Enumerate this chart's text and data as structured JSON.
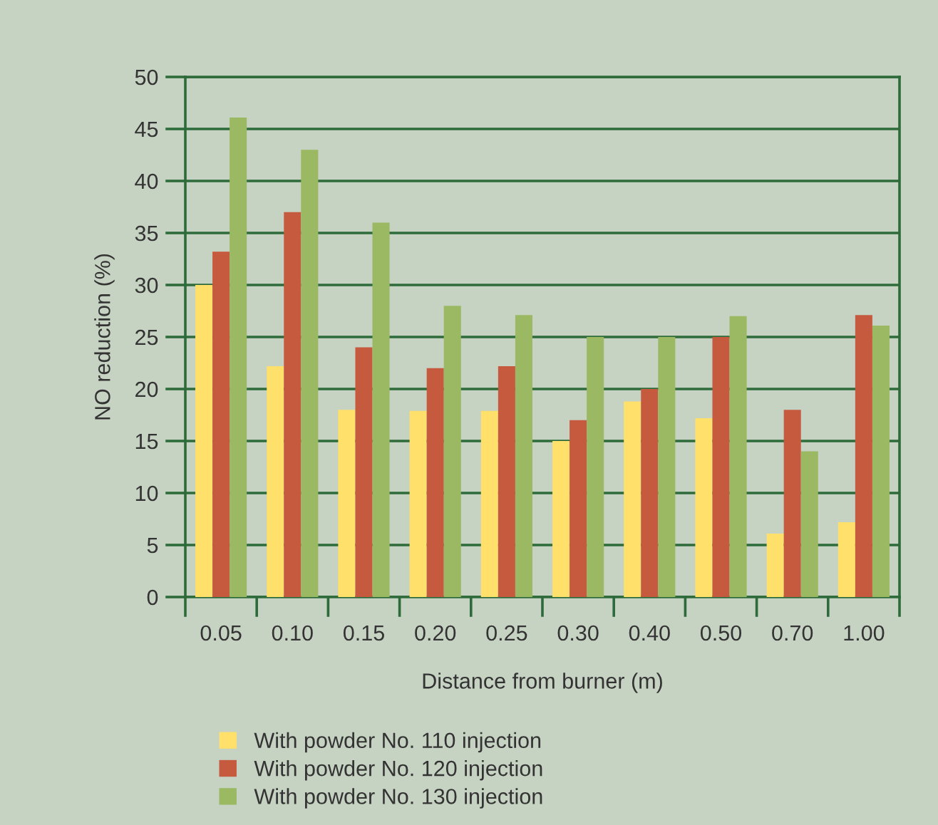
{
  "chart_data": {
    "type": "bar",
    "xlabel": "Distance from burner (m)",
    "ylabel": "NO reduction (%)",
    "categories": [
      "0.05",
      "0.10",
      "0.15",
      "0.20",
      "0.25",
      "0.30",
      "0.40",
      "0.50",
      "0.70",
      "1.00"
    ],
    "series": [
      {
        "name": "With powder No. 110 injection",
        "color": "#ffe06a",
        "values": [
          30,
          22.2,
          18,
          17.9,
          17.9,
          15,
          18.8,
          17.2,
          6.1,
          7.2
        ]
      },
      {
        "name": "With powder No. 120 injection",
        "color": "#c65a3f",
        "values": [
          33.2,
          37,
          24,
          22,
          22.2,
          17,
          20,
          25,
          18,
          27.1
        ]
      },
      {
        "name": "With powder No. 130 injection",
        "color": "#9bb862",
        "values": [
          46.1,
          43,
          36,
          28,
          27.1,
          25,
          25,
          27,
          14,
          26.1
        ]
      }
    ],
    "ylim": [
      0,
      50
    ],
    "yticks": [
      0,
      5,
      10,
      15,
      20,
      25,
      30,
      35,
      40,
      45,
      50
    ],
    "grid": "y",
    "legend": "bottom"
  }
}
